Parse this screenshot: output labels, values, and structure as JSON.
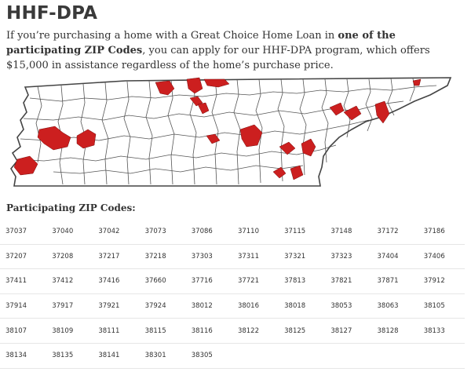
{
  "title": "HHF-DPA",
  "intro": {
    "part1": "If you’re purchasing a home with a Great Choice Home Loan in ",
    "bold": "one of the participating ZIP Codes",
    "part2": ", you can apply for our HHF-DPA program, which offers $15,000 in assistance regardless of the home’s purchase price."
  },
  "map": {
    "image": "tennessee-county-map",
    "border_color": "#555555",
    "highlight_color": "#cc1f1f"
  },
  "zip_heading": "Participating ZIP Codes:",
  "zip_rows": [
    [
      "37037",
      "37040",
      "37042",
      "37073",
      "37086",
      "37110",
      "37115",
      "37148",
      "37172",
      "37186"
    ],
    [
      "37207",
      "37208",
      "37217",
      "37218",
      "37303",
      "37311",
      "37321",
      "37323",
      "37404",
      "37406"
    ],
    [
      "37411",
      "37412",
      "37416",
      "37660",
      "37716",
      "37721",
      "37813",
      "37821",
      "37871",
      "37912"
    ],
    [
      "37914",
      "37917",
      "37921",
      "37924",
      "38012",
      "38016",
      "38018",
      "38053",
      "38063",
      "38105"
    ],
    [
      "38107",
      "38109",
      "38111",
      "38115",
      "38116",
      "38122",
      "38125",
      "38127",
      "38128",
      "38133"
    ],
    [
      "38134",
      "38135",
      "38141",
      "38301",
      "38305",
      "",
      "",
      "",
      "",
      ""
    ]
  ]
}
